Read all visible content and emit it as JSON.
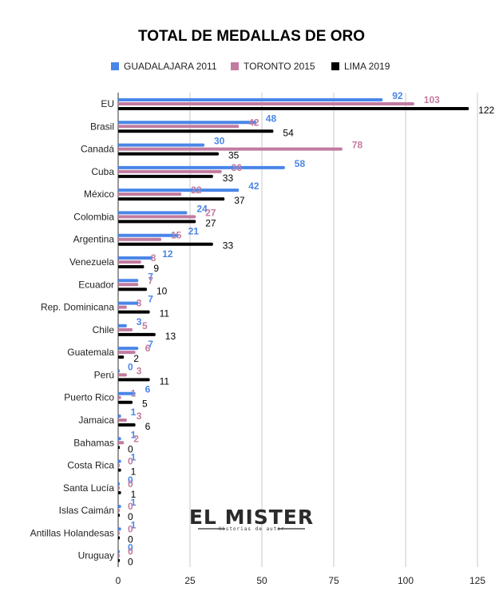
{
  "chart_data": {
    "type": "bar",
    "orientation": "horizontal",
    "title": "TOTAL DE MEDALLAS DE ORO",
    "xlabel": "",
    "ylabel": "",
    "xlim": [
      0,
      125
    ],
    "xticks": [
      0,
      25,
      50,
      75,
      100,
      125
    ],
    "grid": "vertical",
    "legend_position": "top",
    "categories": [
      "EU",
      "Brasil",
      "Canadá",
      "Cuba",
      "México",
      "Colombia",
      "Argentina",
      "Venezuela",
      "Ecuador",
      "Rep. Dominicana",
      "Chile",
      "Guatemala",
      "Perú",
      "Puerto Rico",
      "Jamaica",
      "Bahamas",
      "Costa Rica",
      "Santa Lucía",
      "Islas Caimán",
      "Antillas Holandesas",
      "Uruguay"
    ],
    "series": [
      {
        "name": "GUADALAJARA 2011",
        "color": "#4a86e8",
        "values": [
          92,
          48,
          30,
          58,
          42,
          24,
          21,
          12,
          7,
          7,
          3,
          7,
          0,
          6,
          1,
          1,
          1,
          0,
          1,
          1,
          0
        ]
      },
      {
        "name": "TORONTO 2015",
        "color": "#c27ba0",
        "values": [
          103,
          42,
          78,
          36,
          22,
          27,
          15,
          8,
          7,
          3,
          5,
          6,
          3,
          1,
          3,
          2,
          0,
          0,
          0,
          0,
          0
        ]
      },
      {
        "name": "LIMA 2019",
        "color": "#000000",
        "values": [
          122,
          54,
          35,
          33,
          37,
          27,
          33,
          9,
          10,
          11,
          13,
          2,
          11,
          5,
          6,
          0,
          1,
          1,
          0,
          0,
          0
        ]
      }
    ]
  },
  "logo": {
    "name": "EL MISTER",
    "tagline": "Historias de autor"
  }
}
